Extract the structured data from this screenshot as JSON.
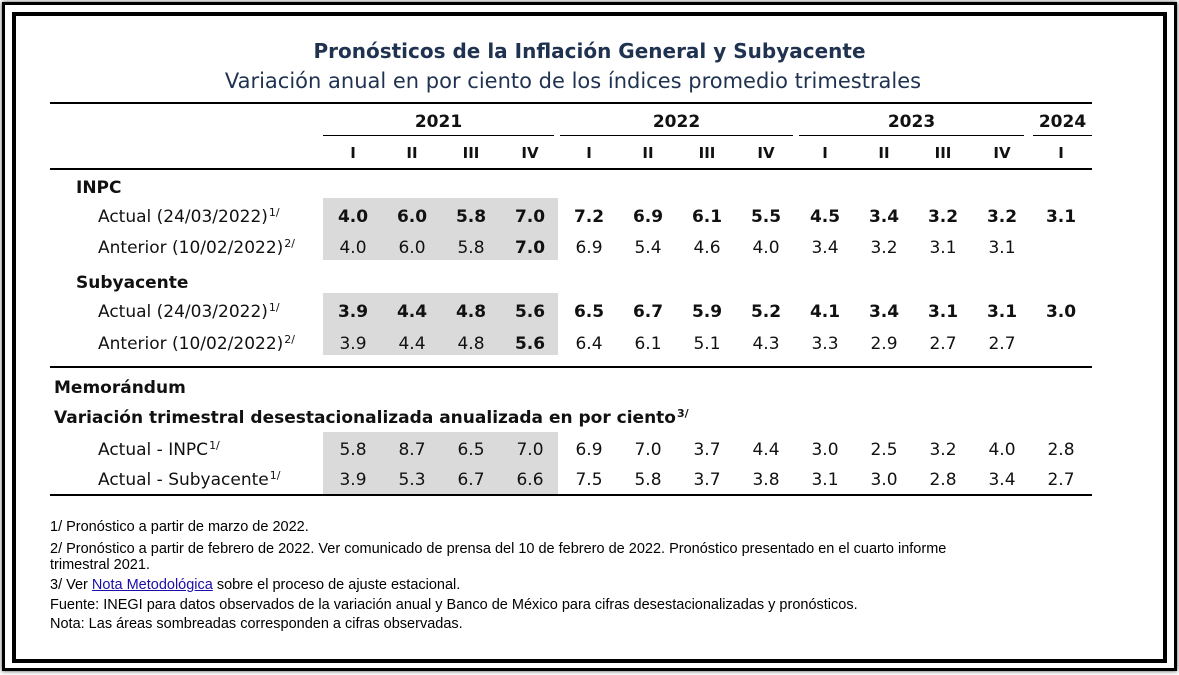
{
  "title": "Pronósticos de la Inflación General y Subyacente",
  "subtitle": "Variación anual en por ciento de los índices promedio trimestrales",
  "years": [
    "2021",
    "2022",
    "2023",
    "2024"
  ],
  "quarters": [
    "I",
    "II",
    "III",
    "IV",
    "I",
    "II",
    "III",
    "IV",
    "I",
    "II",
    "III",
    "IV",
    "I"
  ],
  "sections": {
    "inpc": "INPC",
    "subyacente": "Subyacente",
    "memorandum": "Memorándum",
    "variacion": "Variación trimestral desestacionalizada anualizada en por ciento",
    "variacion_sup": "3/"
  },
  "rows": [
    {
      "label": "Actual (24/03/2022)",
      "sup": "1/",
      "values": [
        "4.0",
        "6.0",
        "5.8",
        "7.0",
        "7.2",
        "6.9",
        "6.1",
        "5.5",
        "4.5",
        "3.4",
        "3.2",
        "3.2",
        "3.1"
      ]
    },
    {
      "label": "Anterior (10/02/2022)",
      "sup": "2/",
      "values": [
        "4.0",
        "6.0",
        "5.8",
        "7.0",
        "6.9",
        "5.4",
        "4.6",
        "4.0",
        "3.4",
        "3.2",
        "3.1",
        "3.1",
        ""
      ]
    },
    {
      "label": "Actual (24/03/2022)",
      "sup": "1/",
      "values": [
        "3.9",
        "4.4",
        "4.8",
        "5.6",
        "6.5",
        "6.7",
        "5.9",
        "5.2",
        "4.1",
        "3.4",
        "3.1",
        "3.1",
        "3.0"
      ]
    },
    {
      "label": "Anterior (10/02/2022)",
      "sup": "2/",
      "values": [
        "3.9",
        "4.4",
        "4.8",
        "5.6",
        "6.4",
        "6.1",
        "5.1",
        "4.3",
        "3.3",
        "2.9",
        "2.7",
        "2.7",
        ""
      ]
    },
    {
      "label": "Actual - INPC",
      "sup": "1/",
      "values": [
        "5.8",
        "8.7",
        "6.5",
        "7.0",
        "6.9",
        "7.0",
        "3.7",
        "4.4",
        "3.0",
        "2.5",
        "3.2",
        "4.0",
        "2.8"
      ]
    },
    {
      "label": "Actual - Subyacente",
      "sup": "1/",
      "values": [
        "3.9",
        "5.3",
        "6.7",
        "6.6",
        "7.5",
        "5.8",
        "3.7",
        "3.8",
        "3.1",
        "3.0",
        "2.8",
        "3.4",
        "2.7"
      ]
    }
  ],
  "notes": {
    "n1": "1/ Pronóstico a partir de marzo de 2022.",
    "n2a": "2/ Pronóstico a partir de febrero de 2022. Ver comunicado de prensa del 10 de febrero de 2022. Pronóstico presentado en el cuarto informe",
    "n2b": "trimestral 2021.",
    "n3_pre": "3/ Ver ",
    "n3_link": "Nota Metodológica",
    "n3_post": " sobre el proceso de ajuste estacional.",
    "fuente": "Fuente: INEGI para datos observados de la variación anual y Banco de México para cifras desestacionalizadas y pronósticos.",
    "nota": "Nota: Las áreas sombreadas corresponden a cifras observadas."
  }
}
